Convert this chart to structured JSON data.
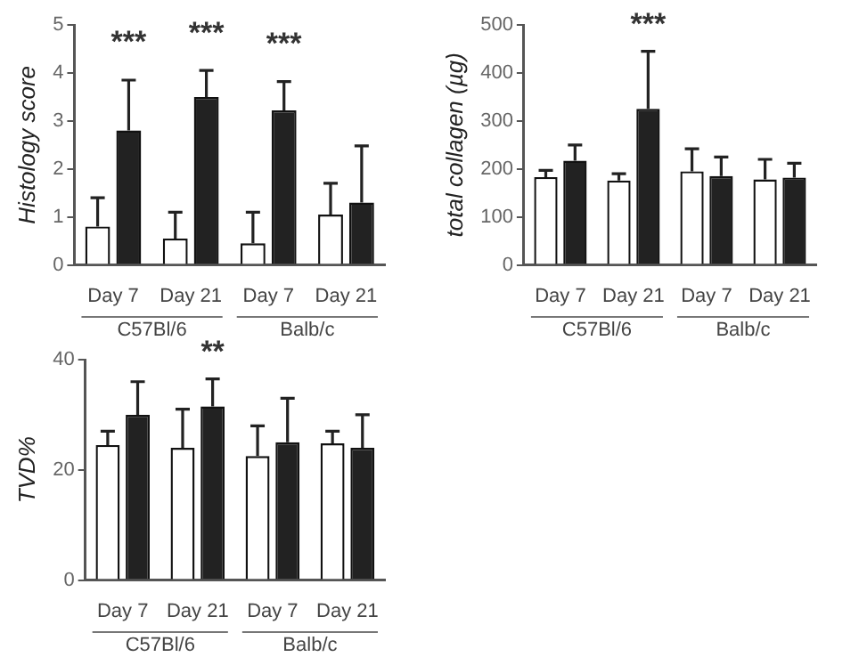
{
  "chart_data": [
    {
      "type": "bar",
      "ylabel": "Histology score",
      "categories": [
        "Day 7",
        "Day 21",
        "Day 7",
        "Day 21"
      ],
      "ylim": [
        0,
        5
      ],
      "yticks": [
        0,
        1,
        2,
        3,
        4,
        5
      ],
      "series": [
        {
          "color": "#ffffff",
          "values": [
            0.8,
            0.55,
            0.45,
            1.05
          ],
          "errors": [
            [
              0.8,
              1.4
            ],
            [
              0.55,
              1.1
            ],
            [
              0.45,
              1.1
            ],
            [
              1.05,
              1.7
            ]
          ]
        },
        {
          "color": "#222222",
          "values": [
            2.8,
            3.5,
            3.22,
            1.3
          ],
          "errors": [
            [
              2.8,
              3.85
            ],
            [
              3.5,
              4.05
            ],
            [
              3.22,
              3.82
            ],
            [
              1.3,
              2.48
            ]
          ]
        }
      ],
      "annotations": [
        "***",
        "***",
        "***",
        "C57Bl/6",
        "Balb/c"
      ]
    },
    {
      "type": "bar",
      "ylabel": "total collagen (µg)",
      "categories": [
        "Day 7",
        "Day 21",
        "Day 7",
        "Day 21"
      ],
      "ylim": [
        0,
        500
      ],
      "yticks": [
        0,
        100,
        200,
        300,
        400,
        500
      ],
      "series": [
        {
          "color": "#ffffff",
          "values": [
            183,
            176,
            195,
            178
          ],
          "errors": [
            [
              183,
              197
            ],
            [
              176,
              190
            ],
            [
              195,
              242
            ],
            [
              178,
              220
            ]
          ]
        },
        {
          "color": "#222222",
          "values": [
            217,
            325,
            185,
            182
          ],
          "errors": [
            [
              217,
              250
            ],
            [
              325,
              445
            ],
            [
              185,
              225
            ],
            [
              182,
              212
            ]
          ]
        }
      ],
      "annotations": [
        {
          "text": "***",
          "x": "Day 21",
          "y": 445
        },
        "C57Bl/6",
        "Balb/c"
      ]
    },
    {
      "type": "bar",
      "ylabel": "TVD%",
      "categories": [
        "Day 7",
        "Day 21",
        "Day 7",
        "Day 21"
      ],
      "ylim": [
        0,
        40
      ],
      "yticks": [
        0,
        20,
        40
      ],
      "series": [
        {
          "color": "#ffffff",
          "values": [
            24.5,
            24,
            22.5,
            24.8
          ],
          "errors": [
            [
              24.5,
              27
            ],
            [
              24,
              31
            ],
            [
              22.5,
              28
            ],
            [
              24.8,
              27
            ]
          ]
        },
        {
          "color": "#222222",
          "values": [
            30,
            31.5,
            25,
            24
          ],
          "errors": [
            [
              30,
              36
            ],
            [
              31.5,
              36.5
            ],
            [
              25,
              33
            ],
            [
              24,
              30
            ]
          ]
        }
      ],
      "annotations": [
        {
          "text": "**",
          "x": "Day 21",
          "y": 36.5
        },
        "C57Bl/6",
        "Balb/c"
      ]
    }
  ]
}
